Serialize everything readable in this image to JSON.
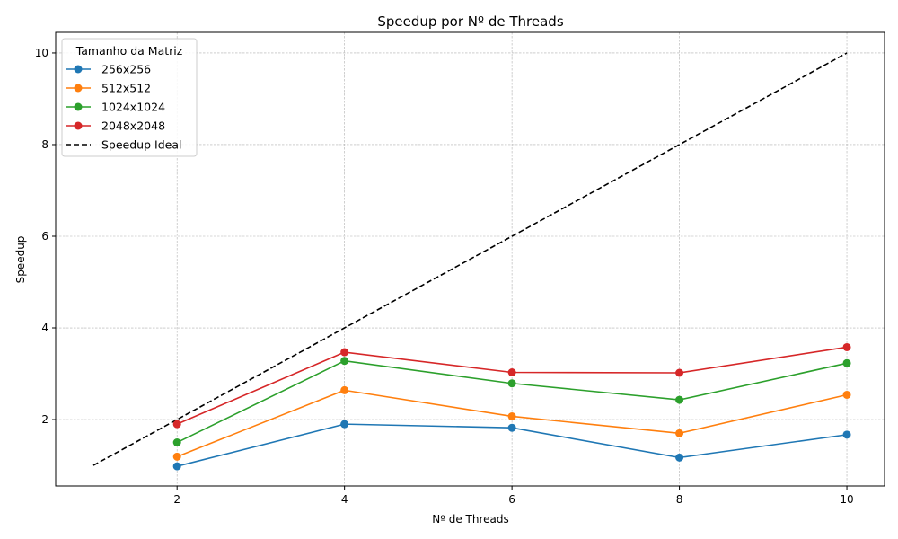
{
  "chart_data": {
    "type": "line",
    "title": "Speedup por Nº de Threads",
    "xlabel": "Nº de Threads",
    "ylabel": "Speedup",
    "x": [
      2,
      4,
      6,
      8,
      10
    ],
    "xticks": [
      2,
      4,
      6,
      8,
      10
    ],
    "yticks": [
      2,
      4,
      6,
      8,
      10
    ],
    "xlim": [
      0.55,
      10.45
    ],
    "ylim": [
      0.55,
      10.45
    ],
    "grid": true,
    "legend": {
      "title": "Tamanho da Matriz",
      "placement": "top-left"
    },
    "series": [
      {
        "name": "256x256",
        "color": "#1f77b4",
        "values": [
          0.98,
          1.9,
          1.82,
          1.17,
          1.67
        ]
      },
      {
        "name": "512x512",
        "color": "#ff7f0e",
        "values": [
          1.19,
          2.64,
          2.07,
          1.7,
          2.54
        ]
      },
      {
        "name": "1024x1024",
        "color": "#2ca02c",
        "values": [
          1.5,
          3.28,
          2.79,
          2.43,
          3.23
        ]
      },
      {
        "name": "2048x2048",
        "color": "#d62728",
        "values": [
          1.9,
          3.47,
          3.03,
          3.02,
          3.58
        ]
      }
    ],
    "ideal": {
      "name": "Speedup Ideal",
      "color": "#000000",
      "x": [
        1,
        10
      ],
      "values": [
        1,
        10
      ]
    }
  }
}
